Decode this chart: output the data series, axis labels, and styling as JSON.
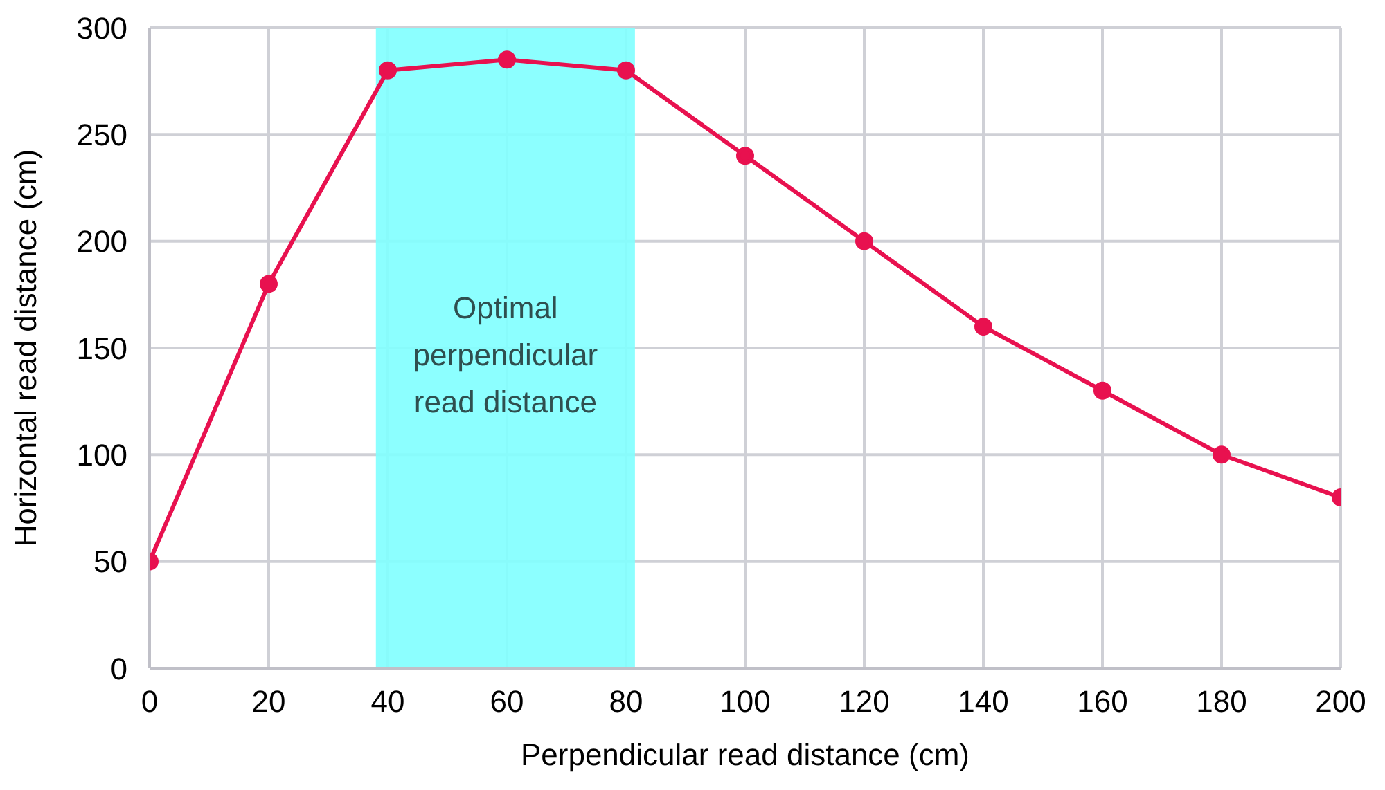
{
  "chart_data": {
    "type": "line",
    "xlabel": "Perpendicular read distance (cm)",
    "ylabel": "Horizontal read distance (cm)",
    "x": [
      0,
      20,
      40,
      60,
      80,
      100,
      120,
      140,
      160,
      180,
      200
    ],
    "series": [
      {
        "color": "#e8114f",
        "values": [
          50,
          180,
          280,
          285,
          280,
          240,
          200,
          160,
          130,
          100,
          80
        ]
      }
    ],
    "xlim": [
      0,
      200
    ],
    "xticks": [
      0,
      20,
      40,
      60,
      80,
      100,
      120,
      140,
      160,
      180,
      200
    ],
    "ylim": [
      0,
      300
    ],
    "yticks": [
      0,
      50,
      100,
      150,
      200,
      250,
      300
    ],
    "grid": true,
    "marker": "circle",
    "line_style": "solid",
    "bands": [
      {
        "axis": "x",
        "from": 38,
        "to": 81.5,
        "label": "Optimal perpendicular read distance",
        "color": "#80ffff"
      }
    ]
  }
}
